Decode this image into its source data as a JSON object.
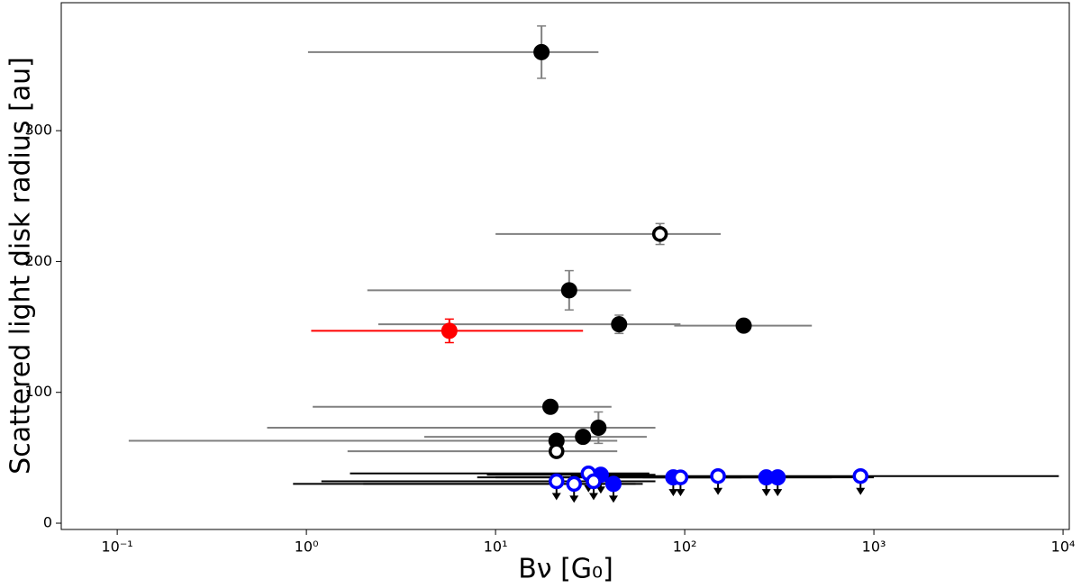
{
  "chart_data": {
    "type": "scatter",
    "xlabel": "Bν [G₀]",
    "ylabel": "Scattered light disk radius [au]",
    "xscale": "log",
    "xlim": [
      0.0506,
      10790
    ],
    "ylim": [
      -4.8,
      397.8
    ],
    "xticks": [
      {
        "value": 0.1,
        "label": "10⁻¹"
      },
      {
        "value": 1,
        "label": "10⁰"
      },
      {
        "value": 10,
        "label": "10¹"
      },
      {
        "value": 100,
        "label": "10²"
      },
      {
        "value": 1000,
        "label": "10³"
      },
      {
        "value": 10000,
        "label": "10⁴"
      }
    ],
    "yticks": [
      0,
      100,
      200,
      300
    ],
    "series": [
      {
        "color": "#000000",
        "marker": "filled",
        "errcolor": "#808080",
        "upper_limit": false,
        "x": [
          17.5,
          24.5,
          45,
          205,
          19.5,
          35,
          21,
          29
        ],
        "y": [
          360,
          178,
          152,
          151,
          89,
          73,
          63,
          66
        ],
        "xlow": [
          1.02,
          2.1,
          2.4,
          88,
          1.08,
          0.62,
          0.115,
          4.2
        ],
        "xhigh": [
          35,
          52,
          95,
          470,
          41,
          70,
          44,
          63
        ],
        "yerr": [
          20,
          15,
          7,
          3,
          3,
          12,
          3,
          4
        ]
      },
      {
        "color": "#000000",
        "marker": "open",
        "errcolor": "#808080",
        "upper_limit": false,
        "x": [
          74,
          21
        ],
        "y": [
          221,
          55
        ],
        "xlow": [
          10,
          1.65
        ],
        "xhigh": [
          155,
          44
        ],
        "yerr": [
          8,
          3
        ]
      },
      {
        "color": "#ff0000",
        "marker": "filled",
        "errcolor": "#ff0000",
        "upper_limit": false,
        "x": [
          5.7
        ],
        "y": [
          147
        ],
        "xlow": [
          1.06
        ],
        "xhigh": [
          29
        ],
        "yerr": [
          9
        ]
      },
      {
        "color": "#0000ff",
        "marker": "filled",
        "errcolor": "#000000",
        "upper_limit": true,
        "x": [
          36,
          42,
          87,
          270,
          310
        ],
        "y": [
          37,
          30,
          35,
          35,
          35
        ],
        "xlow": [
          9,
          0.85,
          8,
          30,
          60
        ],
        "xhigh": [
          70,
          55,
          200,
          1000,
          600
        ]
      },
      {
        "color": "#0000ff",
        "marker": "open",
        "errcolor": "#000000",
        "upper_limit": true,
        "x": [
          21,
          26,
          31,
          33,
          95,
          150,
          850
        ],
        "y": [
          32,
          30,
          38,
          32,
          35,
          36,
          36
        ],
        "xlow": [
          1.2,
          2,
          1.7,
          5,
          10,
          25,
          300
        ],
        "xhigh": [
          70,
          60,
          65,
          55,
          300,
          250,
          9500
        ]
      }
    ]
  }
}
